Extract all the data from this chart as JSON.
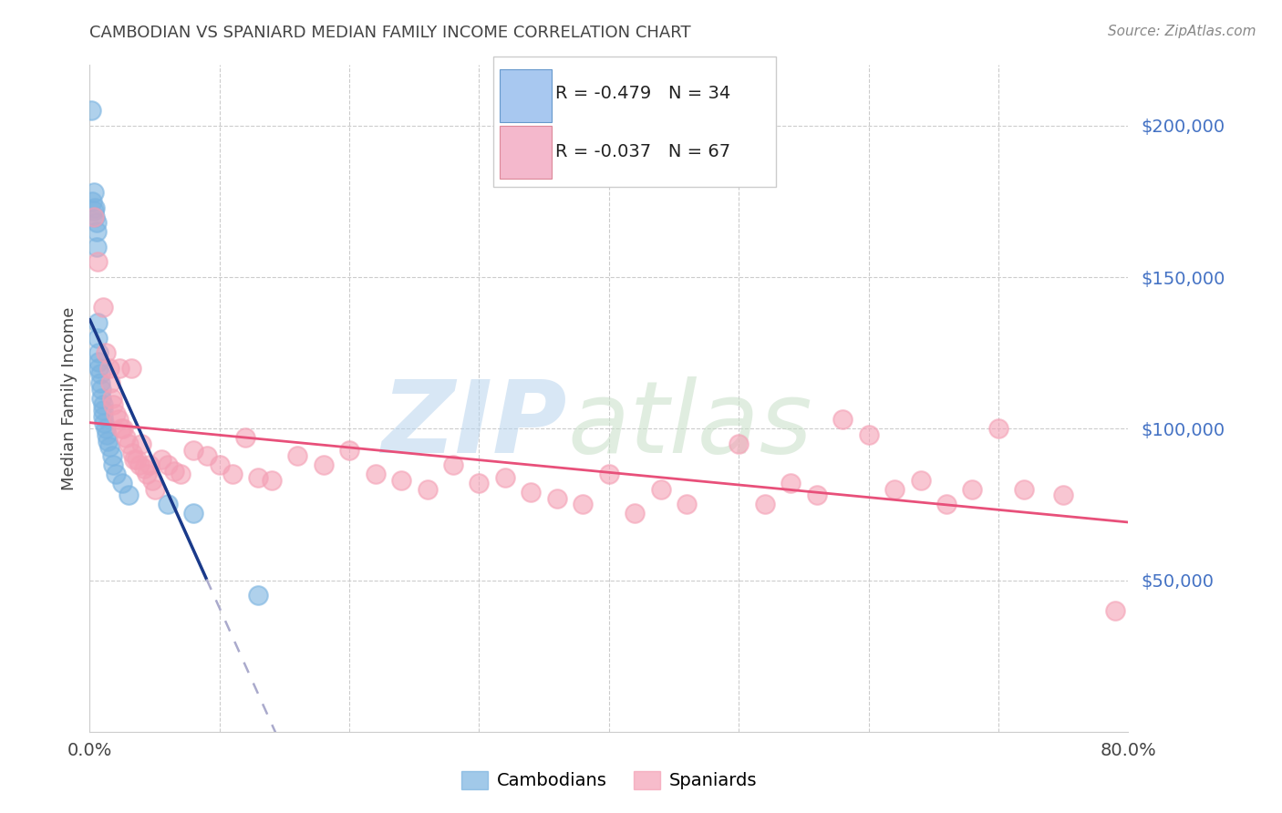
{
  "title": "CAMBODIAN VS SPANIARD MEDIAN FAMILY INCOME CORRELATION CHART",
  "source": "Source: ZipAtlas.com",
  "ylabel": "Median Family Income",
  "watermark_zip": "ZIP",
  "watermark_atlas": "atlas",
  "xlim": [
    0.0,
    0.8
  ],
  "ylim": [
    0,
    220000
  ],
  "yticks": [
    50000,
    100000,
    150000,
    200000
  ],
  "ytick_labels": [
    "$50,000",
    "$100,000",
    "$150,000",
    "$200,000"
  ],
  "xtick_labels": [
    "0.0%",
    "80.0%"
  ],
  "xtick_pos": [
    0.0,
    0.8
  ],
  "cambodian_color": "#7ab3e0",
  "spaniard_color": "#f4a0b5",
  "cambodian_line_color": "#1a3a8a",
  "spaniard_line_color": "#e8507a",
  "grid_color": "#cccccc",
  "ytick_color": "#4472c4",
  "title_color": "#444444",
  "source_color": "#888888",
  "cambodian_R": -0.479,
  "cambodian_N": 34,
  "spaniard_R": -0.037,
  "spaniard_N": 67,
  "legend_label_1": "Cambodians",
  "legend_label_2": "Spaniards",
  "cambodians_x": [
    0.001,
    0.002,
    0.003,
    0.003,
    0.004,
    0.004,
    0.005,
    0.005,
    0.005,
    0.006,
    0.006,
    0.007,
    0.007,
    0.007,
    0.008,
    0.008,
    0.009,
    0.009,
    0.01,
    0.01,
    0.01,
    0.011,
    0.012,
    0.013,
    0.014,
    0.015,
    0.017,
    0.018,
    0.02,
    0.025,
    0.03,
    0.06,
    0.08,
    0.13
  ],
  "cambodians_y": [
    205000,
    175000,
    178000,
    172000,
    173000,
    170000,
    168000,
    165000,
    160000,
    135000,
    130000,
    125000,
    122000,
    120000,
    118000,
    115000,
    113000,
    110000,
    108000,
    106000,
    104000,
    102000,
    100000,
    98000,
    96000,
    94000,
    91000,
    88000,
    85000,
    82000,
    78000,
    75000,
    72000,
    45000
  ],
  "spaniards_x": [
    0.003,
    0.006,
    0.01,
    0.012,
    0.015,
    0.016,
    0.017,
    0.018,
    0.02,
    0.022,
    0.023,
    0.024,
    0.026,
    0.028,
    0.03,
    0.032,
    0.033,
    0.034,
    0.036,
    0.038,
    0.04,
    0.042,
    0.044,
    0.046,
    0.048,
    0.05,
    0.055,
    0.06,
    0.065,
    0.07,
    0.08,
    0.09,
    0.1,
    0.11,
    0.12,
    0.13,
    0.14,
    0.16,
    0.18,
    0.2,
    0.22,
    0.24,
    0.26,
    0.28,
    0.3,
    0.32,
    0.34,
    0.36,
    0.38,
    0.4,
    0.42,
    0.44,
    0.46,
    0.5,
    0.52,
    0.54,
    0.56,
    0.58,
    0.6,
    0.62,
    0.64,
    0.66,
    0.68,
    0.7,
    0.72,
    0.75,
    0.79
  ],
  "spaniards_y": [
    170000,
    155000,
    140000,
    125000,
    120000,
    115000,
    110000,
    108000,
    105000,
    103000,
    120000,
    100000,
    100000,
    97000,
    95000,
    120000,
    92000,
    90000,
    90000,
    88000,
    95000,
    87000,
    85000,
    88000,
    83000,
    80000,
    90000,
    88000,
    86000,
    85000,
    93000,
    91000,
    88000,
    85000,
    97000,
    84000,
    83000,
    91000,
    88000,
    93000,
    85000,
    83000,
    80000,
    88000,
    82000,
    84000,
    79000,
    77000,
    75000,
    85000,
    72000,
    80000,
    75000,
    95000,
    75000,
    82000,
    78000,
    103000,
    98000,
    80000,
    83000,
    75000,
    80000,
    100000,
    80000,
    78000,
    40000
  ]
}
